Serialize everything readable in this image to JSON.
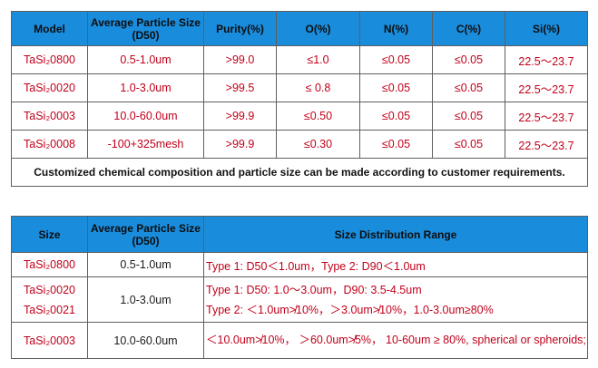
{
  "table1": {
    "headers": [
      "Model",
      "Average Particle Size (D50)",
      "Purity(%)",
      "O(%)",
      "N(%)",
      "C(%)",
      "Si(%)"
    ],
    "rows": [
      {
        "model": "TaSi₂0800",
        "size": "0.5-1.0um",
        "purity": ">99.0",
        "o": "≤1.0",
        "n": "≤0.05",
        "c": "≤0.05",
        "si": "22.5～23.7"
      },
      {
        "model": "TaSi₂0020",
        "size": "1.0-3.0um",
        "purity": ">99.5",
        "o": "≤ 0.8",
        "n": "≤0.05",
        "c": "≤0.05",
        "si": "22.5～23.7"
      },
      {
        "model": "TaSi₂0003",
        "size": "10.0-60.0um",
        "purity": ">99.9",
        "o": "≤0.50",
        "n": "≤0.05",
        "c": "≤0.05",
        "si": "22.5～23.7"
      },
      {
        "model": "TaSi₂0008",
        "size": "-100+325mesh",
        "purity": ">99.9",
        "o": "≤0.30",
        "n": "≤0.05",
        "c": "≤0.05",
        "si": "22.5～23.7"
      }
    ],
    "note": "Customized chemical composition and particle size can be made according to customer requirements."
  },
  "table2": {
    "headers": [
      "Size",
      "Average Particle Size (D50)",
      "Size Distribution Range"
    ],
    "rows": [
      {
        "models": [
          "TaSi₂0800"
        ],
        "size": "0.5-1.0um",
        "dist": [
          "Type 1:  D50＜1.0um，Type 2:  D90＜1.0um"
        ]
      },
      {
        "models": [
          "TaSi₂0020",
          "TaSi₂0021"
        ],
        "size": "1.0-3.0um",
        "dist": [
          "Type 1:  D50:  1.0～3.0um，D90:  3.5-4.5um",
          "Type 2:  ＜1.0um≯10%，＞3.0um≯10%，1.0-3.0um≥80%"
        ]
      },
      {
        "models": [
          "TaSi₂0003"
        ],
        "size": "10.0-60.0um",
        "dist": [
          "＜10.0um≯10%，  ＞60.0um≯5%，  10-60um ≥ 80%, spherical or spheroids;"
        ]
      }
    ]
  }
}
